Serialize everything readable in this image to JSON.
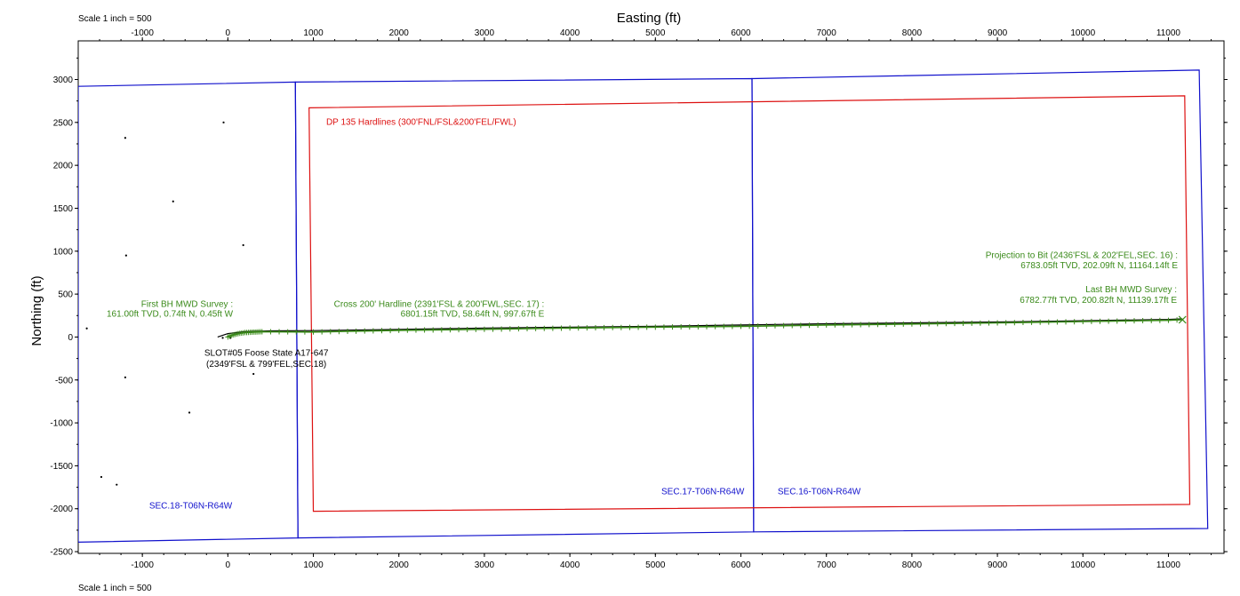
{
  "chart_data": {
    "type": "scatter",
    "title": "",
    "xlabel": "Easting (ft)",
    "ylabel": "Northing (ft)",
    "scale_label_top": "Scale 1 inch = 500",
    "scale_label_bottom": "Scale 1 inch = 500",
    "xlim": [
      -1750,
      11650
    ],
    "ylim": [
      -2520,
      3450
    ],
    "x_ticks": [
      -1000,
      0,
      1000,
      2000,
      3000,
      4000,
      5000,
      6000,
      7000,
      8000,
      9000,
      10000,
      11000
    ],
    "y_ticks": [
      -2500,
      -2000,
      -1500,
      -1000,
      -500,
      0,
      500,
      1000,
      1500,
      2000,
      2500,
      3000
    ],
    "grid": false,
    "colors": {
      "section": "#1010cc",
      "hardline": "#dd1111",
      "survey": "#3a8a1a",
      "plan": "#000000",
      "slot": "#000000"
    },
    "section_lines": [
      {
        "name": "SEC.18-T06N-R64W",
        "points": [
          [
            -1750,
            2920
          ],
          [
            790,
            2970
          ],
          [
            820,
            -2340
          ],
          [
            -1750,
            -2390
          ]
        ]
      },
      {
        "name": "SEC.17-T06N-R64W",
        "points": [
          [
            790,
            2970
          ],
          [
            6130,
            3010
          ],
          [
            6150,
            -2270
          ],
          [
            820,
            -2340
          ]
        ]
      },
      {
        "name": "SEC.16-T06N-R64W",
        "points": [
          [
            6130,
            3010
          ],
          [
            11360,
            3110
          ],
          [
            11460,
            -2230
          ],
          [
            6150,
            -2270
          ]
        ]
      }
    ],
    "hardline_polygon": [
      [
        950,
        2670
      ],
      [
        11190,
        2810
      ],
      [
        11250,
        -1950
      ],
      [
        1000,
        -2030
      ]
    ],
    "plan_path": [
      [
        -120,
        0
      ],
      [
        0,
        40
      ],
      [
        200,
        62
      ],
      [
        500,
        72
      ],
      [
        1000,
        75
      ],
      [
        2000,
        88
      ],
      [
        3000,
        105
      ],
      [
        4000,
        115
      ],
      [
        5000,
        125
      ],
      [
        6000,
        140
      ],
      [
        7000,
        155
      ],
      [
        8000,
        165
      ],
      [
        9000,
        175
      ],
      [
        10000,
        190
      ],
      [
        11000,
        205
      ],
      [
        11164,
        212
      ]
    ],
    "survey_path": [
      [
        0,
        0.74
      ],
      [
        50,
        22
      ],
      [
        120,
        40
      ],
      [
        200,
        52
      ],
      [
        400,
        62
      ],
      [
        998,
        58.64
      ],
      [
        2000,
        78
      ],
      [
        3000,
        90
      ],
      [
        4000,
        105
      ],
      [
        5000,
        115
      ],
      [
        6000,
        125
      ],
      [
        7000,
        140
      ],
      [
        8000,
        152
      ],
      [
        9000,
        165
      ],
      [
        10000,
        180
      ],
      [
        11000,
        195
      ],
      [
        11139.17,
        200.82
      ],
      [
        11164.14,
        202.09
      ]
    ],
    "scatter_points": [
      [
        -1200,
        2320
      ],
      [
        -50,
        2500
      ],
      [
        -640,
        1580
      ],
      [
        180,
        1070
      ],
      [
        -1190,
        950
      ],
      [
        -1650,
        100
      ],
      [
        -1200,
        -470
      ],
      [
        -450,
        -880
      ],
      [
        -1480,
        -1630
      ],
      [
        -1300,
        -1720
      ],
      [
        300,
        -430
      ],
      [
        30,
        -10
      ],
      [
        -60,
        -10
      ]
    ],
    "annotations": [
      {
        "id": "hardline",
        "color": "hardline",
        "anchor": "start",
        "lines": [
          {
            "text": "DP 135 Hardlines (300'FNL/FSL&200'FEL/FWL)",
            "x": 1150,
            "y": 2470
          }
        ]
      },
      {
        "id": "first-survey",
        "color": "survey",
        "anchor": "end",
        "lines": [
          {
            "text": "First BH MWD Survey :",
            "x": 60,
            "y": 350
          },
          {
            "text": "161.00ft TVD, 0.74ft N, 0.45ft W",
            "x": 60,
            "y": 235
          }
        ]
      },
      {
        "id": "cross-hardline",
        "color": "survey",
        "anchor": "end",
        "lines": [
          {
            "text": "Cross 200' Hardline (2391'FSL & 200'FWL,SEC. 17) :",
            "x": 3700,
            "y": 350
          },
          {
            "text": "6801.15ft TVD, 58.64ft N, 997.67ft E",
            "x": 3700,
            "y": 235
          }
        ]
      },
      {
        "id": "projection",
        "color": "survey",
        "anchor": "end",
        "lines": [
          {
            "text": "Projection to Bit (2436'FSL & 202'FEL,SEC. 16) :",
            "x": 11110,
            "y": 920
          },
          {
            "text": "6783.05ft TVD, 202.09ft N, 11164.14ft E",
            "x": 11110,
            "y": 800
          }
        ]
      },
      {
        "id": "last-survey",
        "color": "survey",
        "anchor": "end",
        "lines": [
          {
            "text": "Last BH MWD Survey :",
            "x": 11100,
            "y": 520
          },
          {
            "text": "6782.77ft TVD, 200.82ft N, 11139.17ft E",
            "x": 11100,
            "y": 400
          }
        ]
      },
      {
        "id": "slot",
        "color": "slot",
        "anchor": "middle",
        "lines": [
          {
            "text": "SLOT#05 Foose State A17-647",
            "x": 450,
            "y": -220
          },
          {
            "text": "(2349'FSL & 799'FEL,SEC.18)",
            "x": 450,
            "y": -345
          }
        ]
      },
      {
        "id": "sec18",
        "color": "section",
        "anchor": "start",
        "lines": [
          {
            "text": "SEC.18-T06N-R64W",
            "x": -920,
            "y": -2000
          }
        ]
      },
      {
        "id": "sec17",
        "color": "section",
        "anchor": "end",
        "lines": [
          {
            "text": "SEC.17-T06N-R64W",
            "x": 6040,
            "y": -1830
          }
        ]
      },
      {
        "id": "sec16",
        "color": "section",
        "anchor": "start",
        "lines": [
          {
            "text": "SEC.16-T06N-R64W",
            "x": 6430,
            "y": -1830
          }
        ]
      }
    ]
  }
}
